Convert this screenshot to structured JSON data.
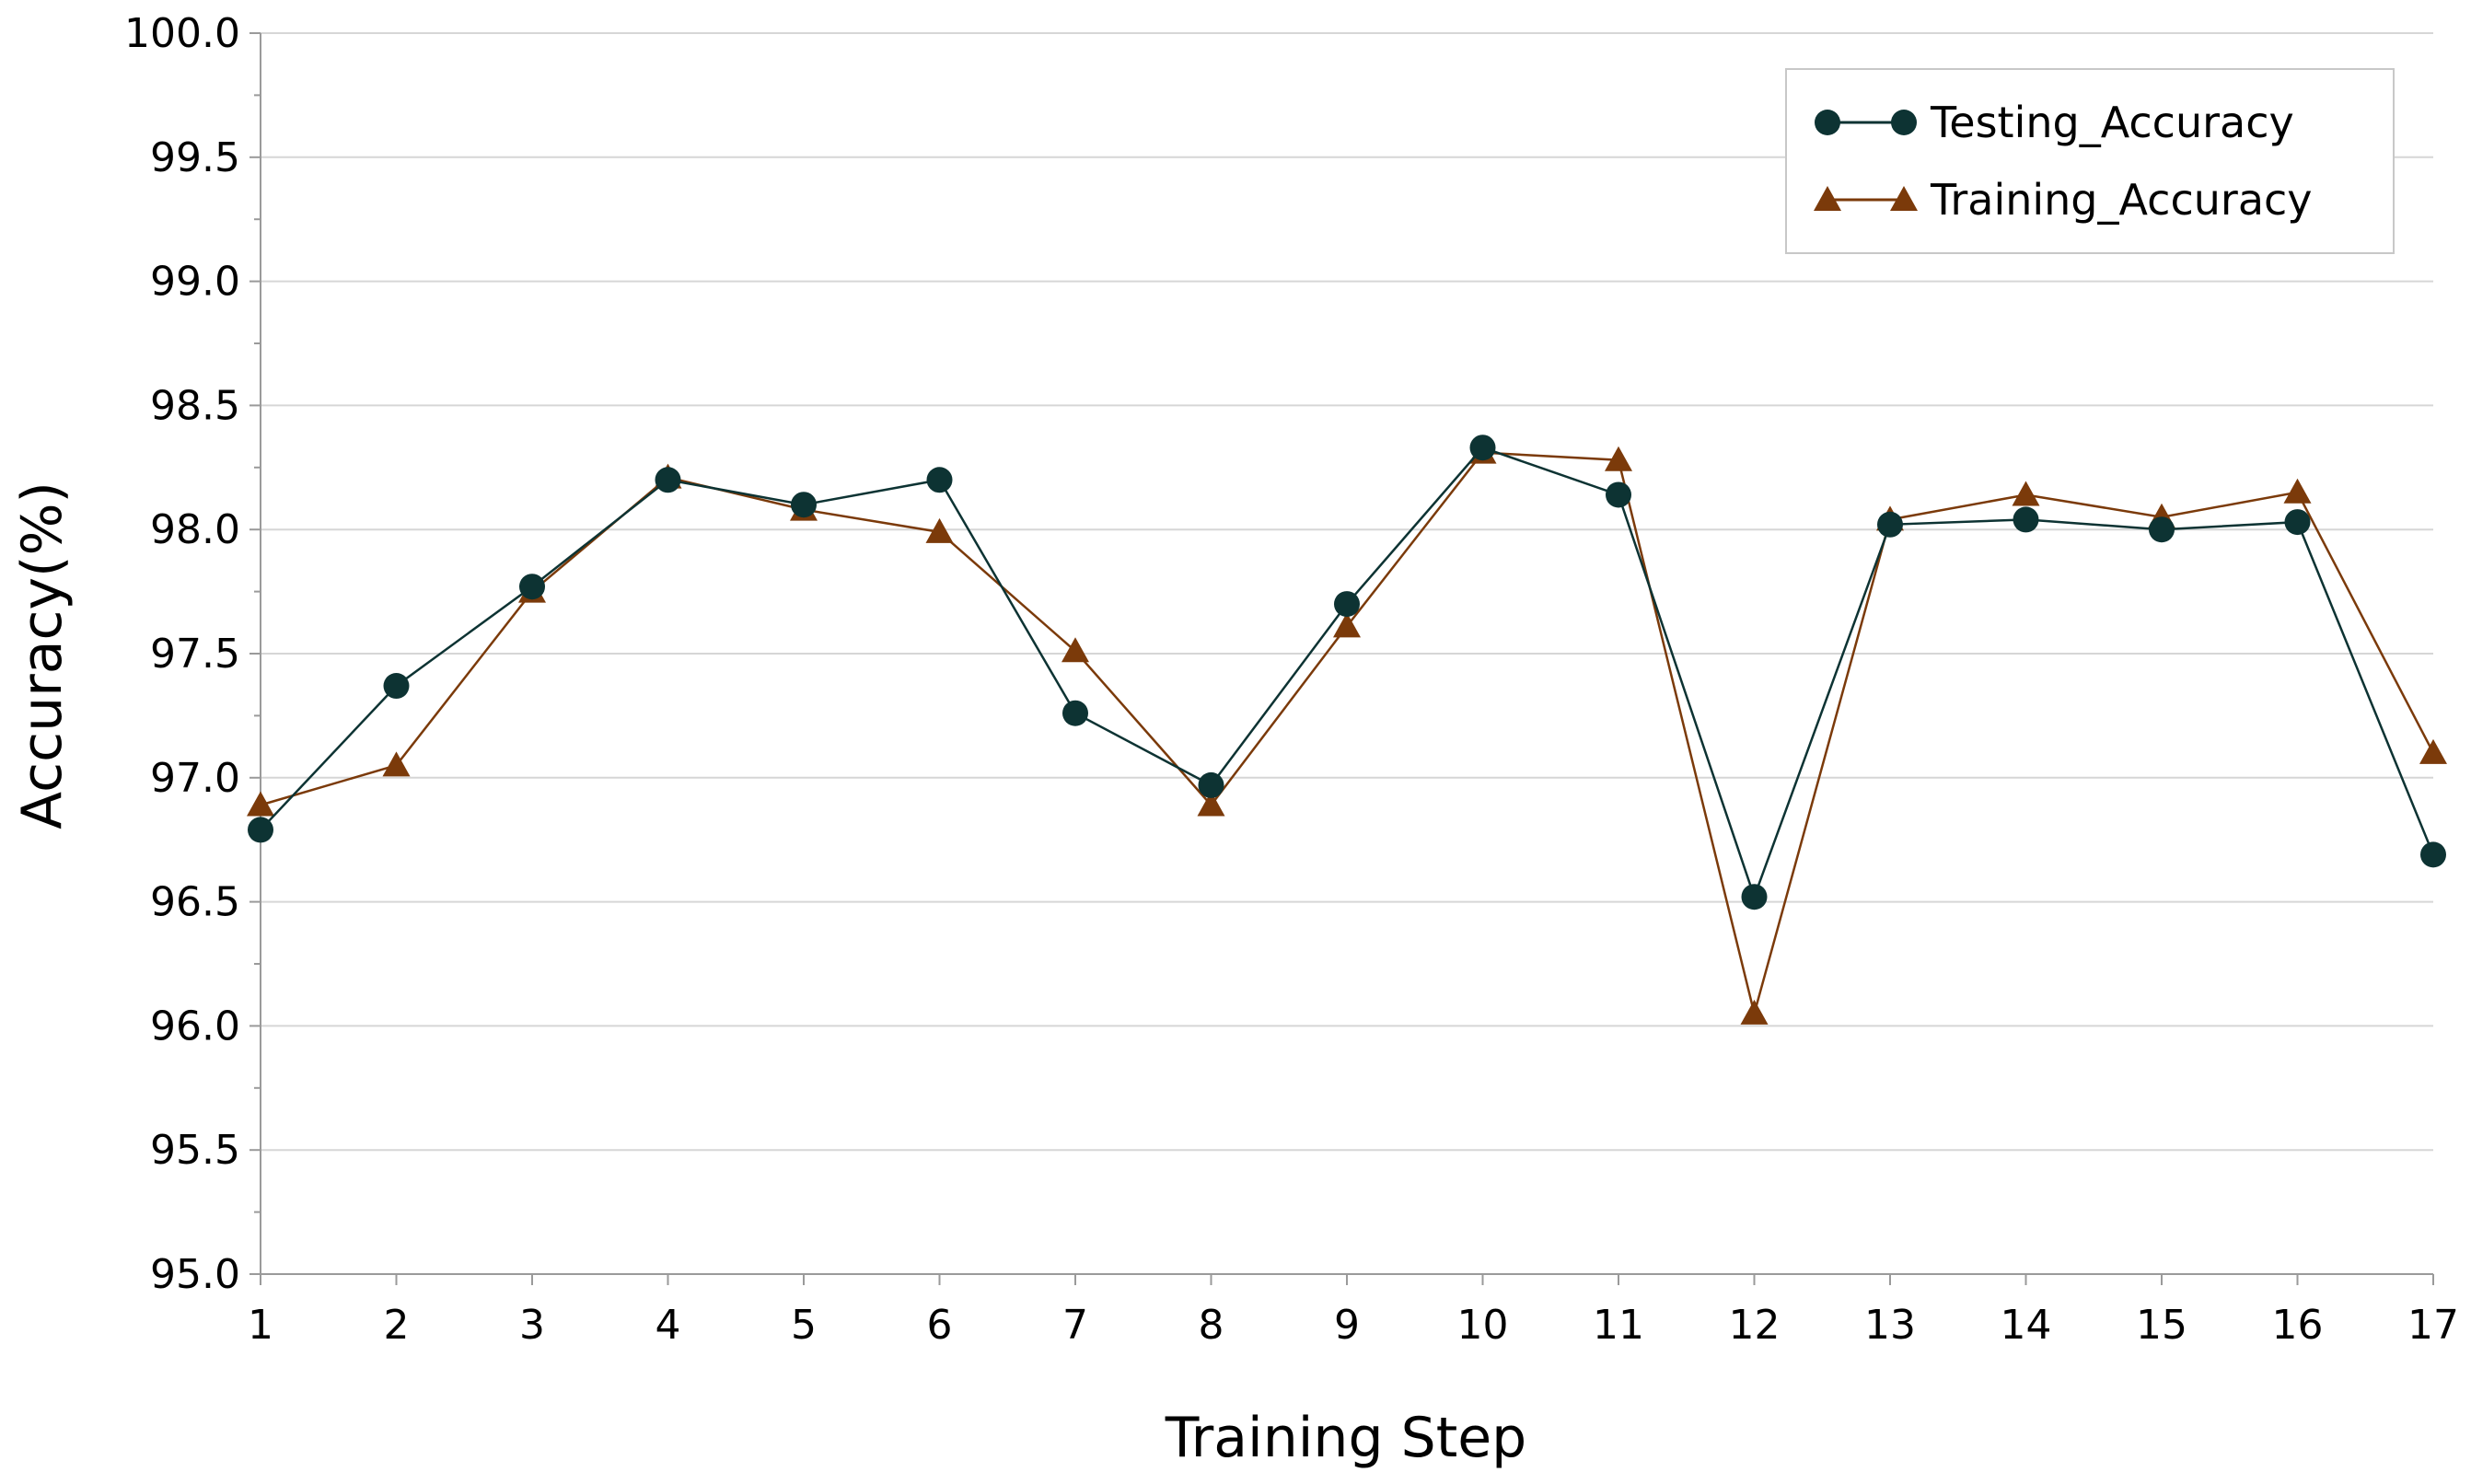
{
  "chart_data": {
    "type": "line",
    "title": "",
    "xlabel": "Training Step",
    "ylabel": "Accuracy(%)",
    "x": [
      1,
      2,
      3,
      4,
      5,
      6,
      7,
      8,
      9,
      10,
      11,
      12,
      13,
      14,
      15,
      16,
      17
    ],
    "x_tick_labels": [
      "1",
      "2",
      "3",
      "4",
      "5",
      "6",
      "7",
      "8",
      "9",
      "10",
      "11",
      "12",
      "13",
      "14",
      "15",
      "16",
      "17"
    ],
    "ylim": [
      95.0,
      100.0
    ],
    "y_tick_labels": [
      "95.0",
      "95.5",
      "96.0",
      "96.5",
      "97.0",
      "97.5",
      "98.0",
      "98.5",
      "99.0",
      "99.5",
      "100.0"
    ],
    "grid": "horizontal",
    "legend_position": "top-right",
    "series": [
      {
        "name": "Testing_Accuracy",
        "marker": "circle",
        "color": "#0d3333",
        "values": [
          96.79,
          97.37,
          97.77,
          98.2,
          98.1,
          98.2,
          97.26,
          96.97,
          97.7,
          98.33,
          98.14,
          96.52,
          98.02,
          98.04,
          98.0,
          98.03,
          96.69
        ]
      },
      {
        "name": "Training_Accuracy",
        "marker": "triangle",
        "color": "#7b3a0a",
        "values": [
          96.89,
          97.05,
          97.75,
          98.21,
          98.08,
          97.99,
          97.51,
          96.89,
          97.61,
          98.31,
          98.28,
          96.05,
          98.04,
          98.14,
          98.05,
          98.15,
          97.1
        ]
      }
    ]
  }
}
